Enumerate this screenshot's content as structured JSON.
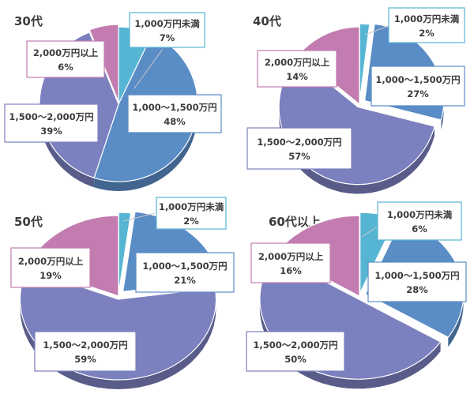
{
  "colors": {
    "under_1000": "#56b5d3",
    "1000_1500": "#5a8cc6",
    "1500_2000": "#7b80be",
    "over_2000": "#c27cb0",
    "label_text": "#3b3b3b"
  },
  "chart_data": [
    {
      "type": "pie",
      "title": "30代",
      "slices": [
        {
          "label": "1,000万円未満",
          "value": 7,
          "value_label": "7%",
          "color": "#56b5d3"
        },
        {
          "label": "1,000～1,500万円",
          "value": 48,
          "value_label": "48%",
          "color": "#5a8cc6"
        },
        {
          "label": "1,500～2,000万円",
          "value": 39,
          "value_label": "39%",
          "color": "#7b80be"
        },
        {
          "label": "2,000万円以上",
          "value": 6,
          "value_label": "6%",
          "color": "#c27cb0"
        }
      ]
    },
    {
      "type": "pie",
      "title": "40代",
      "slices": [
        {
          "label": "1,000万円未満",
          "value": 2,
          "value_label": "2%",
          "color": "#56b5d3"
        },
        {
          "label": "1,000～1,500万円",
          "value": 27,
          "value_label": "27%",
          "color": "#5a8cc6"
        },
        {
          "label": "1,500～2,000万円",
          "value": 57,
          "value_label": "57%",
          "color": "#7b80be"
        },
        {
          "label": "2,000万円以上",
          "value": 14,
          "value_label": "14%",
          "color": "#c27cb0"
        }
      ]
    },
    {
      "type": "pie",
      "title": "50代",
      "slices": [
        {
          "label": "1,000万円未満",
          "value": 2,
          "value_label": "2%",
          "color": "#56b5d3"
        },
        {
          "label": "1,000～1,500万円",
          "value": 21,
          "value_label": "21%",
          "color": "#5a8cc6"
        },
        {
          "label": "1,500～2,000万円",
          "value": 59,
          "value_label": "59%",
          "color": "#7b80be"
        },
        {
          "label": "2,000万円以上",
          "value": 19,
          "value_label": "19%",
          "color": "#c27cb0"
        }
      ]
    },
    {
      "type": "pie",
      "title": "60代以上",
      "slices": [
        {
          "label": "1,000万円未満",
          "value": 6,
          "value_label": "6%",
          "color": "#56b5d3"
        },
        {
          "label": "1,000～1,500万円",
          "value": 28,
          "value_label": "28%",
          "color": "#5a8cc6"
        },
        {
          "label": "1,500～2,000万円",
          "value": 50,
          "value_label": "50%",
          "color": "#7b80be"
        },
        {
          "label": "2,000万円以上",
          "value": 16,
          "value_label": "16%",
          "color": "#c27cb0"
        }
      ]
    }
  ]
}
